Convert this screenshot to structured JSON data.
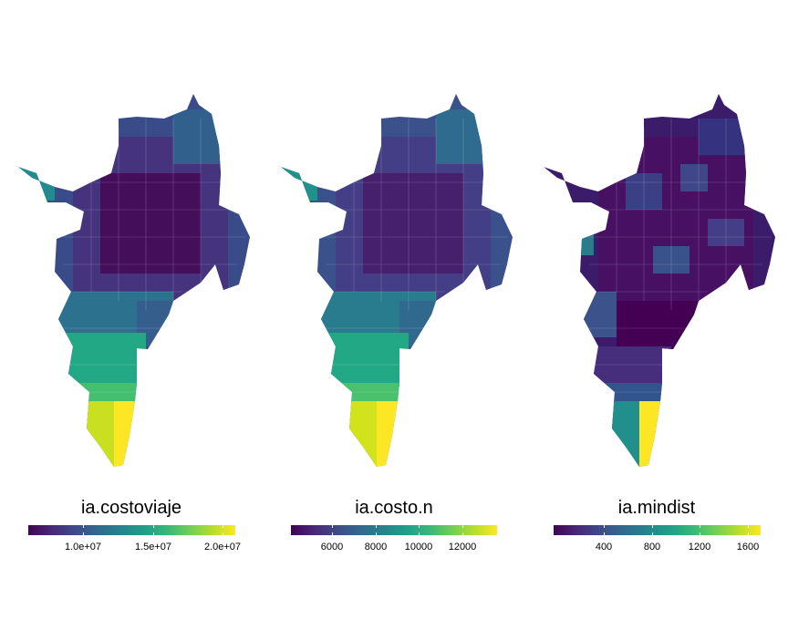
{
  "panels": [
    {
      "legend_title": "ia.costoviaje",
      "ticks": [
        "1.0e+07",
        "1.5e+07",
        "2.0e+07"
      ]
    },
    {
      "legend_title": "ia.costo.n",
      "ticks": [
        "6000",
        "8000",
        "10000",
        "12000"
      ]
    },
    {
      "legend_title": "ia.mindist",
      "ticks": [
        "400",
        "800",
        "1200",
        "1600"
      ]
    }
  ],
  "colors": {
    "viridis_low": "#440154",
    "viridis_mid": "#21908C",
    "viridis_high": "#FDE725",
    "background": "#ffffff"
  }
}
